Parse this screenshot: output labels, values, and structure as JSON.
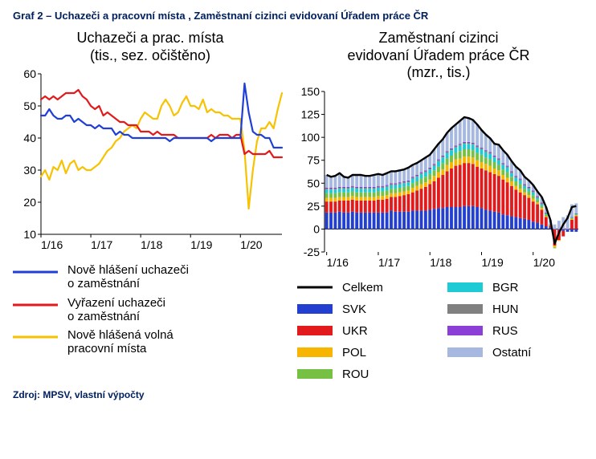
{
  "title": "Graf 2 – Uchazeči a pracovní místa , Zaměstnaní cizinci evidovaní Úřadem práce ČR",
  "source": "Zdroj: MPSV, vlastní výpočty",
  "colors": {
    "title": "#002060",
    "axis": "#000000",
    "series_blue": "#1f3fd6",
    "series_red": "#e31a1c",
    "series_yellow": "#f7c200",
    "total_black": "#000000",
    "svk": "#223fd0",
    "ukr": "#e31a1c",
    "pol": "#f7b500",
    "rou": "#76c043",
    "bgr": "#1ecad3",
    "hun": "#808080",
    "rus": "#8c3fd6",
    "other": "#a6b8e0",
    "background": "#ffffff"
  },
  "left": {
    "title": "Uchazeči a prac. místa\n(tis., sez. očištěno)",
    "ylim": [
      10,
      60
    ],
    "yticks": [
      10,
      20,
      30,
      40,
      50,
      60
    ],
    "xticks": [
      "1/16",
      "1/17",
      "1/18",
      "1/19",
      "1/20"
    ],
    "n_points": 59,
    "series": {
      "blue": [
        47,
        47,
        49,
        47,
        46,
        46,
        47,
        47,
        45,
        46,
        45,
        44,
        44,
        43,
        44,
        43,
        43,
        43,
        41,
        42,
        41,
        41,
        40,
        40,
        40,
        40,
        40,
        40,
        40,
        40,
        40,
        39,
        40,
        40,
        40,
        40,
        40,
        40,
        40,
        40,
        40,
        39,
        40,
        40,
        40,
        40,
        40,
        40,
        40,
        57,
        48,
        42,
        41,
        41,
        40,
        40,
        37,
        37,
        37
      ],
      "red": [
        52,
        53,
        52,
        53,
        52,
        53,
        54,
        54,
        54,
        55,
        53,
        52,
        50,
        49,
        50,
        47,
        48,
        47,
        46,
        45,
        45,
        44,
        44,
        44,
        42,
        42,
        42,
        41,
        42,
        41,
        41,
        41,
        41,
        40,
        40,
        40,
        40,
        40,
        40,
        40,
        40,
        41,
        40,
        41,
        41,
        41,
        40,
        41,
        41,
        35,
        36,
        35,
        35,
        35,
        35,
        36,
        34,
        34,
        34
      ],
      "yellow": [
        28,
        30,
        27,
        31,
        30,
        33,
        29,
        32,
        33,
        30,
        31,
        30,
        30,
        31,
        32,
        34,
        36,
        37,
        39,
        40,
        42,
        43,
        44,
        43,
        46,
        48,
        47,
        46,
        46,
        50,
        52,
        50,
        47,
        48,
        51,
        53,
        50,
        50,
        49,
        52,
        48,
        49,
        48,
        48,
        47,
        47,
        46,
        46,
        46,
        36,
        18,
        30,
        39,
        43,
        43,
        45,
        43,
        49,
        54
      ]
    },
    "legend": [
      {
        "label": "Nově hlášení uchazeči\no zaměstnání",
        "colorKey": "series_blue"
      },
      {
        "label": "Vyřazení uchazeči\no zaměstnání",
        "colorKey": "series_red"
      },
      {
        "label": "Nově hlášená volná\npracovní místa",
        "colorKey": "series_yellow"
      }
    ]
  },
  "right": {
    "title": "Zaměstnaní cizinci\nevidovaní Úřadem práce ČR\n(mzr., tis.)",
    "ylim": [
      -25,
      150
    ],
    "yticks": [
      -25,
      0,
      25,
      50,
      75,
      100,
      125,
      150
    ],
    "xticks": [
      "1/16",
      "1/17",
      "1/18",
      "1/19",
      "1/20"
    ],
    "n_points": 59,
    "stackOrder": [
      "svk",
      "ukr",
      "pol",
      "rou",
      "bgr",
      "hun",
      "rus",
      "other"
    ],
    "series": {
      "svk": [
        18,
        18,
        18,
        19,
        18,
        18,
        19,
        18,
        18,
        18,
        18,
        18,
        18,
        18,
        18,
        20,
        19,
        19,
        19,
        19,
        20,
        20,
        20,
        20,
        21,
        22,
        23,
        23,
        24,
        24,
        24,
        24,
        25,
        25,
        25,
        24,
        23,
        21,
        20,
        19,
        18,
        16,
        15,
        14,
        13,
        12,
        11,
        10,
        8,
        7,
        5,
        3,
        2,
        0,
        -1,
        -2,
        -3,
        -3,
        -3
      ],
      "ukr": [
        12,
        12,
        12,
        12,
        13,
        13,
        13,
        13,
        13,
        13,
        13,
        13,
        14,
        14,
        15,
        15,
        16,
        17,
        18,
        19,
        20,
        22,
        24,
        26,
        28,
        30,
        33,
        36,
        39,
        42,
        45,
        46,
        47,
        47,
        46,
        44,
        43,
        43,
        42,
        41,
        40,
        38,
        36,
        33,
        30,
        28,
        26,
        24,
        22,
        20,
        16,
        10,
        2,
        -18,
        -11,
        -6,
        0,
        10,
        14
      ],
      "pol": [
        4,
        4,
        4,
        4,
        4,
        4,
        4,
        4,
        4,
        4,
        4,
        4,
        4,
        4,
        4,
        4,
        4,
        4,
        4,
        4,
        5,
        5,
        5,
        5,
        5,
        6,
        6,
        6,
        7,
        7,
        7,
        7,
        7,
        7,
        7,
        7,
        7,
        7,
        7,
        6,
        6,
        5,
        5,
        5,
        4,
        4,
        3,
        3,
        3,
        2,
        2,
        1,
        0,
        -2,
        -1,
        0,
        0,
        1,
        1
      ],
      "rou": [
        5,
        5,
        5,
        5,
        5,
        5,
        5,
        5,
        5,
        5,
        5,
        5,
        5,
        5,
        5,
        5,
        5,
        5,
        5,
        5,
        5,
        5,
        6,
        6,
        6,
        6,
        6,
        7,
        7,
        7,
        7,
        8,
        8,
        8,
        8,
        8,
        8,
        7,
        7,
        7,
        6,
        6,
        6,
        5,
        5,
        5,
        4,
        4,
        4,
        3,
        2,
        2,
        1,
        -1,
        0,
        0,
        0,
        1,
        1
      ],
      "bgr": [
        4,
        4,
        4,
        4,
        4,
        4,
        4,
        4,
        4,
        4,
        4,
        4,
        4,
        4,
        4,
        4,
        4,
        4,
        4,
        4,
        5,
        5,
        5,
        5,
        5,
        5,
        6,
        6,
        6,
        6,
        6,
        6,
        6,
        6,
        6,
        6,
        6,
        6,
        6,
        5,
        5,
        5,
        5,
        4,
        4,
        4,
        3,
        3,
        3,
        2,
        2,
        1,
        0,
        0,
        0,
        0,
        0,
        1,
        1
      ],
      "hun": [
        1,
        1,
        1,
        1,
        1,
        1,
        1,
        1,
        1,
        1,
        1,
        1,
        1,
        1,
        1,
        1,
        1,
        1,
        1,
        1,
        1,
        1,
        1,
        1,
        1,
        1,
        1,
        1,
        1,
        1,
        1,
        1,
        1,
        1,
        1,
        1,
        1,
        1,
        1,
        1,
        1,
        1,
        1,
        1,
        1,
        1,
        1,
        1,
        1,
        1,
        1,
        1,
        0,
        0,
        0,
        0,
        0,
        0,
        0
      ],
      "rus": [
        1,
        1,
        1,
        1,
        1,
        1,
        1,
        1,
        1,
        1,
        1,
        1,
        1,
        1,
        1,
        1,
        1,
        1,
        1,
        1,
        1,
        1,
        1,
        1,
        1,
        1,
        1,
        1,
        1,
        1,
        1,
        1,
        1,
        1,
        1,
        1,
        1,
        1,
        1,
        1,
        1,
        1,
        1,
        1,
        1,
        1,
        1,
        1,
        1,
        1,
        1,
        0,
        0,
        0,
        0,
        0,
        0,
        0,
        0
      ],
      "other": [
        14,
        12,
        13,
        15,
        11,
        10,
        12,
        13,
        13,
        12,
        12,
        13,
        13,
        12,
        13,
        13,
        13,
        13,
        13,
        14,
        13,
        13,
        13,
        14,
        14,
        16,
        17,
        18,
        20,
        22,
        23,
        25,
        27,
        26,
        25,
        23,
        19,
        17,
        15,
        13,
        15,
        14,
        12,
        11,
        10,
        9,
        8,
        7,
        6,
        5,
        6,
        6,
        5,
        5,
        9,
        13,
        15,
        14,
        11
      ]
    },
    "legend": [
      {
        "label": "Celkem",
        "colorKey": "total_black",
        "type": "line"
      },
      {
        "label": "BGR",
        "colorKey": "bgr",
        "type": "box"
      },
      {
        "label": "SVK",
        "colorKey": "svk",
        "type": "box"
      },
      {
        "label": "HUN",
        "colorKey": "hun",
        "type": "box"
      },
      {
        "label": "UKR",
        "colorKey": "ukr",
        "type": "box"
      },
      {
        "label": "RUS",
        "colorKey": "rus",
        "type": "box"
      },
      {
        "label": "POL",
        "colorKey": "pol",
        "type": "box"
      },
      {
        "label": "Ostatní",
        "colorKey": "other",
        "type": "box"
      },
      {
        "label": "ROU",
        "colorKey": "rou",
        "type": "box"
      }
    ]
  }
}
